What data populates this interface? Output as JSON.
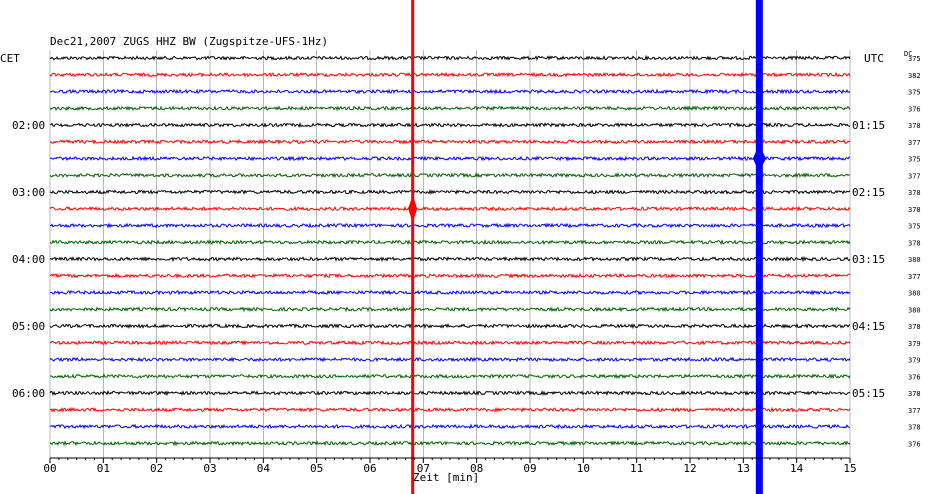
{
  "header": {
    "title": "Dec21,2007   ZUGS HHZ BW (Zugspitze-UFS-1Hz)",
    "left_zone": "CET",
    "right_zone": "UTC",
    "dc_label": "DC"
  },
  "chart_data": {
    "type": "line",
    "title": "Dec21,2007   ZUGS HHZ BW (Zugspitze-UFS-1Hz)",
    "xlabel": "Zeit [min]",
    "ylabel": "",
    "xlim": [
      0,
      15
    ],
    "x_ticks": [
      "00",
      "01",
      "02",
      "03",
      "04",
      "05",
      "06",
      "07",
      "08",
      "09",
      "10",
      "11",
      "12",
      "13",
      "14",
      "15"
    ],
    "grid": true,
    "trace_colors": [
      "#000000",
      "#ff0000",
      "#0000ff",
      "#006400"
    ],
    "row_count": 24,
    "left_time_labels": [
      {
        "row": 4,
        "text": "02:00"
      },
      {
        "row": 8,
        "text": "03:00"
      },
      {
        "row": 12,
        "text": "04:00"
      },
      {
        "row": 16,
        "text": "05:00"
      },
      {
        "row": 20,
        "text": "06:00"
      }
    ],
    "right_time_labels": [
      {
        "row": 4,
        "text": "01:15"
      },
      {
        "row": 8,
        "text": "02:15"
      },
      {
        "row": 12,
        "text": "03:15"
      },
      {
        "row": 16,
        "text": "04:15"
      },
      {
        "row": 20,
        "text": "05:15"
      }
    ],
    "dc_values": [
      "375",
      "382",
      "375",
      "376",
      "378",
      "377",
      "375",
      "377",
      "378",
      "378",
      "375",
      "378",
      "380",
      "377",
      "380",
      "380",
      "378",
      "379",
      "379",
      "376",
      "378",
      "377",
      "378",
      "376"
    ],
    "events": [
      {
        "color": "#ff0000",
        "minute": 6.8,
        "peak_row": 9
      },
      {
        "color": "#0000ff",
        "minute": 13.3,
        "peak_row": 6
      }
    ]
  }
}
